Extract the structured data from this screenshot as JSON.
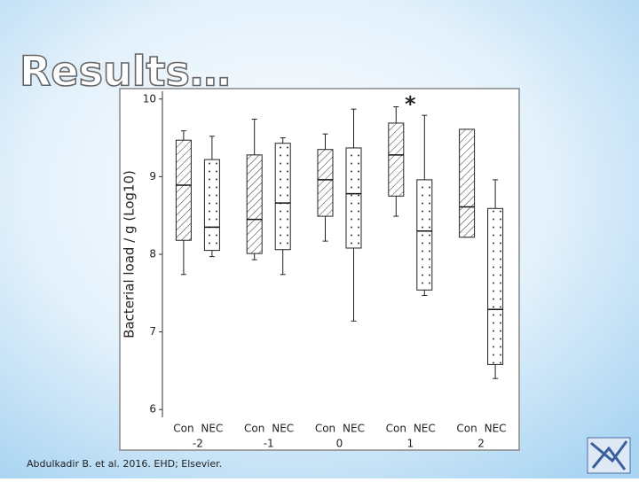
{
  "slide": {
    "title": "Results…",
    "citation": "Abdulkadir B. et al. 2016. EHD; Elsevier."
  },
  "chart_data": {
    "type": "boxplot",
    "ylabel": "Bacterial load / g (Log10)",
    "annotation": "*",
    "annotation_group": 3,
    "groups": [
      "-2",
      "-1",
      "0",
      "1",
      "2"
    ],
    "series": [
      {
        "name": "Con",
        "pattern": "hatch",
        "values": [
          {
            "min": 7.74,
            "q1": 8.18,
            "median": 8.89,
            "q3": 9.47,
            "max": 9.59
          },
          {
            "min": 7.93,
            "q1": 8.01,
            "median": 8.45,
            "q3": 9.28,
            "max": 9.74
          },
          {
            "min": 8.17,
            "q1": 8.49,
            "median": 8.96,
            "q3": 9.35,
            "max": 9.55
          },
          {
            "min": 8.49,
            "q1": 8.75,
            "median": 9.28,
            "q3": 9.69,
            "max": 9.9
          },
          {
            "min": 8.22,
            "q1": 8.22,
            "median": 8.61,
            "q3": 9.61,
            "max": 9.61
          }
        ]
      },
      {
        "name": "NEC",
        "pattern": "dots",
        "values": [
          {
            "min": 7.97,
            "q1": 8.05,
            "median": 8.35,
            "q3": 9.22,
            "max": 9.52
          },
          {
            "min": 7.74,
            "q1": 8.06,
            "median": 8.66,
            "q3": 9.43,
            "max": 9.5
          },
          {
            "min": 7.14,
            "q1": 8.08,
            "median": 8.78,
            "q3": 9.37,
            "max": 9.87
          },
          {
            "min": 7.47,
            "q1": 7.54,
            "median": 8.3,
            "q3": 8.96,
            "max": 9.79
          },
          {
            "min": 6.4,
            "q1": 6.58,
            "median": 7.29,
            "q3": 8.59,
            "max": 8.96
          }
        ]
      }
    ],
    "ylim": [
      5.9,
      10.1
    ],
    "yticks": [
      6,
      7,
      8,
      9,
      10
    ]
  }
}
